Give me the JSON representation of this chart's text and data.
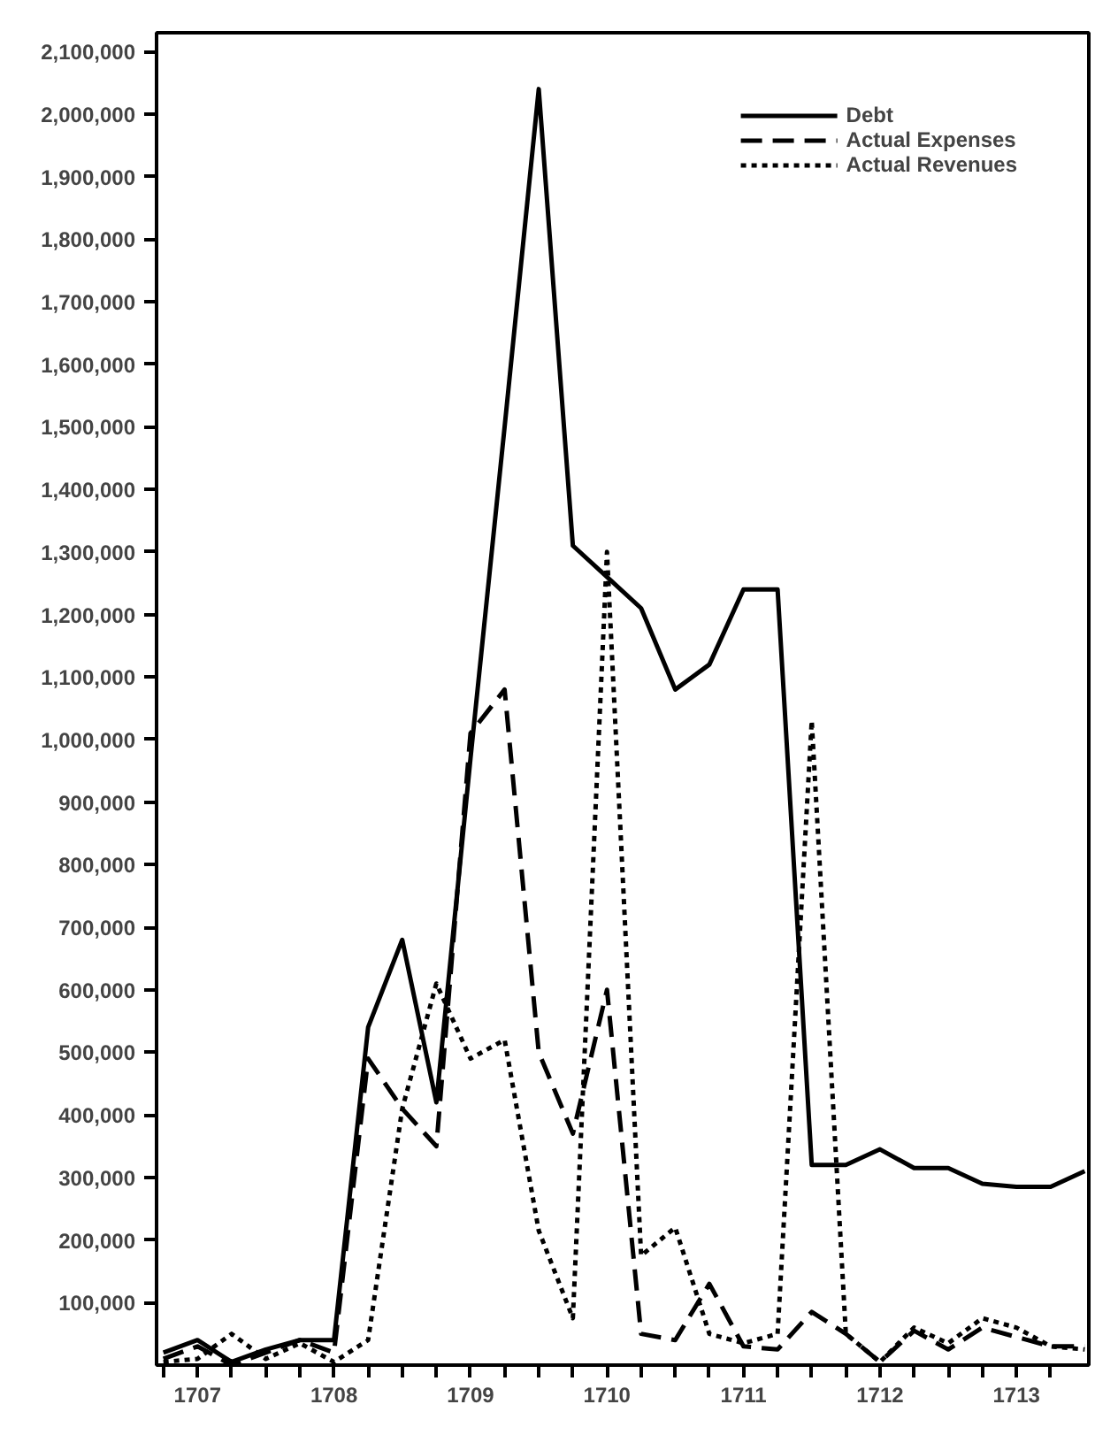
{
  "chart_data": {
    "type": "line",
    "x": [
      1707.25,
      1707.5,
      1707.75,
      1708,
      1708.25,
      1708.5,
      1708.75,
      1709,
      1709.25,
      1709.5,
      1709.75,
      1710,
      1710.25,
      1710.5,
      1710.75,
      1711,
      1711.25,
      1711.5,
      1711.75,
      1712,
      1712.25,
      1712.5,
      1712.75,
      1713,
      1713.25,
      1713.5,
      1713.75,
      1714
    ],
    "series": [
      {
        "name": "Debt",
        "color": "#000000",
        "line_style": "solid",
        "values": [
          20000,
          40000,
          5000,
          25000,
          40000,
          40000,
          540000,
          680000,
          420000,
          970000,
          1500000,
          2040000,
          1310000,
          1260000,
          1210000,
          1080000,
          1120000,
          1240000,
          1240000,
          320000,
          320000,
          345000,
          315000,
          315000,
          290000,
          285000,
          285000,
          310000
        ]
      },
      {
        "name": "Actual Expenses",
        "color": "#000000",
        "line_style": "dashed",
        "values": [
          10000,
          30000,
          0,
          20000,
          40000,
          20000,
          490000,
          410000,
          350000,
          1010000,
          1080000,
          500000,
          370000,
          600000,
          50000,
          40000,
          130000,
          30000,
          25000,
          85000,
          50000,
          5000,
          55000,
          25000,
          60000,
          45000,
          30000,
          30000
        ]
      },
      {
        "name": "Actual Revenues",
        "color": "#000000",
        "line_style": "dotted",
        "values": [
          5000,
          10000,
          50000,
          10000,
          35000,
          5000,
          40000,
          410000,
          610000,
          490000,
          520000,
          215000,
          75000,
          1300000,
          175000,
          220000,
          50000,
          35000,
          50000,
          1030000,
          50000,
          5000,
          60000,
          35000,
          75000,
          60000,
          30000,
          25000
        ]
      }
    ],
    "xlim": [
      1707.2,
      1714.03
    ],
    "xticks": [
      {
        "value": 1707.25,
        "label": null
      },
      {
        "value": 1707.5,
        "label": "1707"
      },
      {
        "value": 1707.75,
        "label": null
      },
      {
        "value": 1708,
        "label": null
      },
      {
        "value": 1708.25,
        "label": null
      },
      {
        "value": 1708.5,
        "label": "1708"
      },
      {
        "value": 1708.75,
        "label": null
      },
      {
        "value": 1709,
        "label": null
      },
      {
        "value": 1709.25,
        "label": null
      },
      {
        "value": 1709.5,
        "label": "1709"
      },
      {
        "value": 1709.75,
        "label": null
      },
      {
        "value": 1710,
        "label": null
      },
      {
        "value": 1710.25,
        "label": null
      },
      {
        "value": 1710.5,
        "label": "1710"
      },
      {
        "value": 1710.75,
        "label": null
      },
      {
        "value": 1711,
        "label": null
      },
      {
        "value": 1711.25,
        "label": null
      },
      {
        "value": 1711.5,
        "label": "1711"
      },
      {
        "value": 1711.75,
        "label": null
      },
      {
        "value": 1712,
        "label": null
      },
      {
        "value": 1712.25,
        "label": null
      },
      {
        "value": 1712.5,
        "label": "1712"
      },
      {
        "value": 1712.75,
        "label": null
      },
      {
        "value": 1713,
        "label": null
      },
      {
        "value": 1713.25,
        "label": null
      },
      {
        "value": 1713.5,
        "label": "1713"
      },
      {
        "value": 1713.75,
        "label": null
      }
    ],
    "ylim": [
      0,
      2130000
    ],
    "yticks": [
      {
        "value": 100000,
        "label": "100,000"
      },
      {
        "value": 200000,
        "label": "200,000"
      },
      {
        "value": 300000,
        "label": "300,000"
      },
      {
        "value": 400000,
        "label": "400,000"
      },
      {
        "value": 500000,
        "label": "500,000"
      },
      {
        "value": 600000,
        "label": "600,000"
      },
      {
        "value": 700000,
        "label": "700,000"
      },
      {
        "value": 800000,
        "label": "800,000"
      },
      {
        "value": 900000,
        "label": "900,000"
      },
      {
        "value": 1000000,
        "label": "1,000,000"
      },
      {
        "value": 1100000,
        "label": "1,100,000"
      },
      {
        "value": 1200000,
        "label": "1,200,000"
      },
      {
        "value": 1300000,
        "label": "1,300,000"
      },
      {
        "value": 1400000,
        "label": "1,400,000"
      },
      {
        "value": 1500000,
        "label": "1,500,000"
      },
      {
        "value": 1600000,
        "label": "1,600,000"
      },
      {
        "value": 1700000,
        "label": "1,700,000"
      },
      {
        "value": 1800000,
        "label": "1,800,000"
      },
      {
        "value": 1900000,
        "label": "1,900,000"
      },
      {
        "value": 2000000,
        "label": "2,000,000"
      },
      {
        "value": 2100000,
        "label": "2,100,000"
      }
    ],
    "grid": false,
    "legend": "top right",
    "marker": "none"
  }
}
